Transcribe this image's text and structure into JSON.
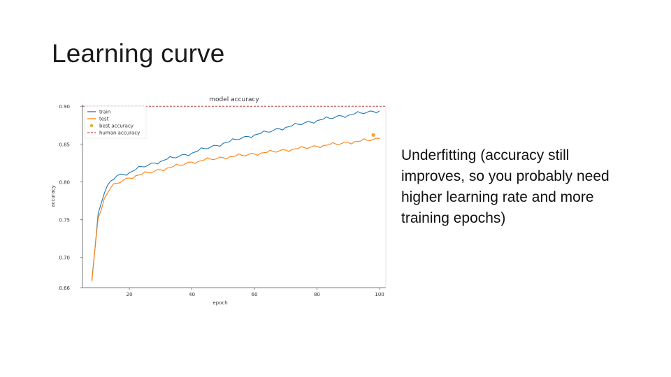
{
  "slide": {
    "title": "Learning curve",
    "body_text": "Underfitting (accuracy still improves, so you probably need higher learning rate and more training epochs)"
  },
  "chart_data": {
    "type": "line",
    "title": "model accuracy",
    "xlabel": "epoch",
    "ylabel": "accuracy",
    "xlim": [
      5,
      102
    ],
    "ylim": [
      0.66,
      0.902
    ],
    "xticks": [
      20,
      40,
      60,
      80,
      100
    ],
    "yticks": [
      0.66,
      0.7,
      0.75,
      0.8,
      0.85,
      0.9
    ],
    "ytick_labels": [
      "0.66",
      "0.70",
      "0.75",
      "0.80",
      "0.85",
      "0.90"
    ],
    "grid": false,
    "legend_placement": "top-left",
    "series": [
      {
        "name": "train",
        "color": "#1f77b4",
        "x": [
          8,
          10,
          12,
          14,
          16,
          18,
          20,
          22,
          24,
          26,
          28,
          30,
          32,
          34,
          36,
          38,
          40,
          42,
          44,
          46,
          48,
          50,
          52,
          54,
          56,
          58,
          60,
          62,
          64,
          66,
          68,
          70,
          72,
          74,
          76,
          78,
          80,
          82,
          84,
          86,
          88,
          90,
          92,
          94,
          96,
          98,
          100
        ],
        "y": [
          0.67,
          0.758,
          0.785,
          0.801,
          0.808,
          0.81,
          0.812,
          0.816,
          0.82,
          0.822,
          0.825,
          0.827,
          0.83,
          0.832,
          0.834,
          0.836,
          0.838,
          0.841,
          0.844,
          0.846,
          0.848,
          0.851,
          0.853,
          0.856,
          0.858,
          0.86,
          0.862,
          0.864,
          0.866,
          0.868,
          0.87,
          0.872,
          0.874,
          0.876,
          0.878,
          0.879,
          0.881,
          0.883,
          0.884,
          0.886,
          0.887,
          0.888,
          0.89,
          0.891,
          0.892,
          0.893,
          0.894
        ]
      },
      {
        "name": "test",
        "color": "#ff7f0e",
        "x": [
          8,
          10,
          12,
          14,
          16,
          18,
          20,
          22,
          24,
          26,
          28,
          30,
          32,
          34,
          36,
          38,
          40,
          42,
          44,
          46,
          48,
          50,
          52,
          54,
          56,
          58,
          60,
          62,
          64,
          66,
          68,
          70,
          72,
          74,
          76,
          78,
          80,
          82,
          84,
          86,
          88,
          90,
          92,
          94,
          96,
          98,
          100
        ],
        "y": [
          0.668,
          0.752,
          0.778,
          0.792,
          0.798,
          0.802,
          0.805,
          0.808,
          0.81,
          0.812,
          0.814,
          0.816,
          0.818,
          0.82,
          0.822,
          0.824,
          0.826,
          0.827,
          0.829,
          0.83,
          0.831,
          0.832,
          0.833,
          0.834,
          0.835,
          0.836,
          0.837,
          0.838,
          0.839,
          0.84,
          0.841,
          0.842,
          0.843,
          0.844,
          0.845,
          0.846,
          0.847,
          0.848,
          0.849,
          0.85,
          0.851,
          0.852,
          0.853,
          0.854,
          0.855,
          0.856,
          0.857
        ]
      }
    ],
    "best_accuracy": {
      "name": "best accuracy",
      "x": 98,
      "y": 0.862,
      "color": "#f5a623"
    },
    "human_accuracy": {
      "name": "human accuracy",
      "y": 0.9,
      "color": "#b22222"
    }
  }
}
